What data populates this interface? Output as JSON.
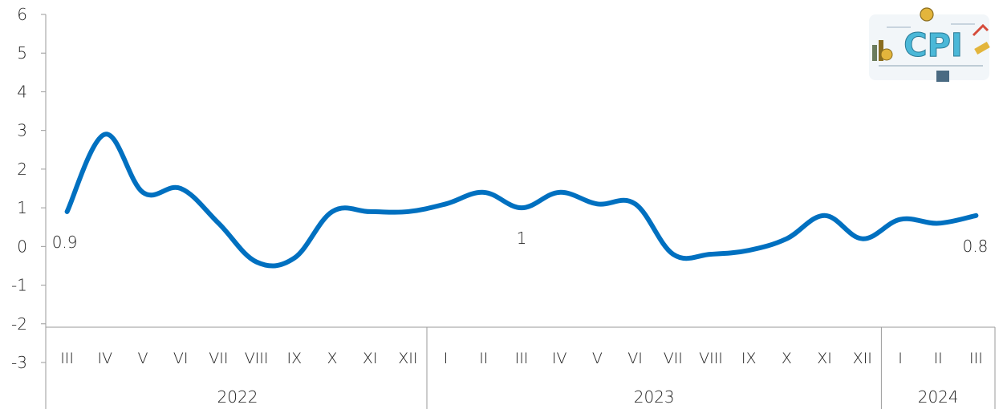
{
  "chart_data": {
    "type": "line",
    "title": "",
    "xlabel": "",
    "ylabel": "",
    "ylim": [
      -3,
      6
    ],
    "yticks": [
      "-3",
      "-2",
      "-1",
      "0",
      "1",
      "2",
      "3",
      "4",
      "5",
      "6"
    ],
    "grid": false,
    "legend": "none",
    "groups": [
      {
        "label": "2022",
        "categories": [
          "III",
          "IV",
          "V",
          "VI",
          "VII",
          "VIII",
          "IX",
          "X",
          "XI",
          "XII"
        ]
      },
      {
        "label": "2023",
        "categories": [
          "I",
          "II",
          "III",
          "IV",
          "V",
          "VI",
          "VII",
          "VIII",
          "IX",
          "X",
          "XI",
          "XII"
        ]
      },
      {
        "label": "2024",
        "categories": [
          "I",
          "II",
          "III"
        ]
      }
    ],
    "series": [
      {
        "color": "#0070C0",
        "values": [
          0.9,
          2.9,
          1.4,
          1.5,
          0.6,
          -0.4,
          -0.3,
          0.9,
          0.9,
          0.9,
          1.1,
          1.4,
          1.0,
          1.4,
          1.1,
          1.1,
          -0.2,
          -0.2,
          -0.1,
          0.2,
          0.8,
          0.2,
          0.7,
          0.6,
          0.8
        ]
      }
    ],
    "data_labels": [
      {
        "index": 0,
        "text": "0.9"
      },
      {
        "index": 12,
        "text": "1"
      },
      {
        "index": 24,
        "text": "0.8"
      }
    ],
    "logo": {
      "text": "CPI",
      "icon": "cpi-logo-icon"
    }
  }
}
